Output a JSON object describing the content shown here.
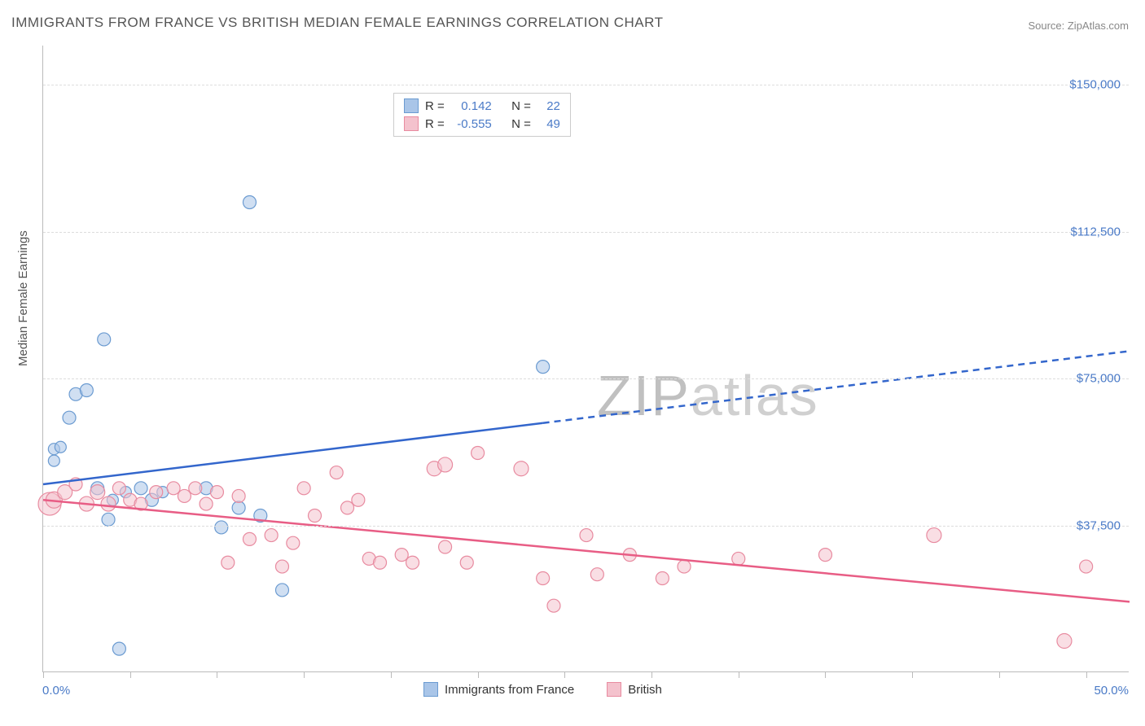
{
  "title": "IMMIGRANTS FROM FRANCE VS BRITISH MEDIAN FEMALE EARNINGS CORRELATION CHART",
  "source_label": "Source: ",
  "source_name": "ZipAtlas.com",
  "ylabel": "Median Female Earnings",
  "watermark_zip": "ZIP",
  "watermark_atlas": "atlas",
  "chart": {
    "type": "scatter",
    "background_color": "#ffffff",
    "grid_color": "#dddddd",
    "axis_color": "#bbbbbb",
    "tick_color": "#4a7ac7",
    "xlim": [
      0,
      50
    ],
    "ylim": [
      0,
      160000
    ],
    "ytick_values": [
      37500,
      75000,
      112500,
      150000
    ],
    "ytick_labels": [
      "$37,500",
      "$75,000",
      "$112,500",
      "$150,000"
    ],
    "xtick_positions_pct": [
      0,
      8,
      16,
      24,
      32,
      40,
      48,
      56,
      64,
      72,
      80,
      88,
      96
    ],
    "xtick_left": "0.0%",
    "xtick_right": "50.0%",
    "stats": {
      "r_label": "R =",
      "n_label": "N =",
      "series1": {
        "r": "0.142",
        "n": "22"
      },
      "series2": {
        "r": "-0.555",
        "n": "49"
      }
    },
    "series": [
      {
        "name": "Immigrants from France",
        "fill_color": "#a9c5e8",
        "stroke_color": "#6b9bd1",
        "line_color": "#3366cc",
        "line_solid_end_x": 23,
        "trend": {
          "x1": 0,
          "y1": 48000,
          "x2": 50,
          "y2": 82000
        },
        "marker_radius": 8,
        "points": [
          {
            "x": 0.5,
            "y": 57000,
            "r": 7
          },
          {
            "x": 0.5,
            "y": 54000,
            "r": 7
          },
          {
            "x": 0.8,
            "y": 57500,
            "r": 7
          },
          {
            "x": 1.2,
            "y": 65000,
            "r": 8
          },
          {
            "x": 1.5,
            "y": 71000,
            "r": 8
          },
          {
            "x": 2.0,
            "y": 72000,
            "r": 8
          },
          {
            "x": 2.5,
            "y": 47000,
            "r": 8
          },
          {
            "x": 2.8,
            "y": 85000,
            "r": 8
          },
          {
            "x": 3.0,
            "y": 39000,
            "r": 8
          },
          {
            "x": 3.2,
            "y": 44000,
            "r": 7
          },
          {
            "x": 3.5,
            "y": 6000,
            "r": 8
          },
          {
            "x": 3.8,
            "y": 46000,
            "r": 7
          },
          {
            "x": 4.5,
            "y": 47000,
            "r": 8
          },
          {
            "x": 5.0,
            "y": 44000,
            "r": 8
          },
          {
            "x": 5.5,
            "y": 46000,
            "r": 7
          },
          {
            "x": 7.5,
            "y": 47000,
            "r": 8
          },
          {
            "x": 8.2,
            "y": 37000,
            "r": 8
          },
          {
            "x": 9.0,
            "y": 42000,
            "r": 8
          },
          {
            "x": 9.5,
            "y": 120000,
            "r": 8
          },
          {
            "x": 10.0,
            "y": 40000,
            "r": 8
          },
          {
            "x": 11.0,
            "y": 21000,
            "r": 8
          },
          {
            "x": 23.0,
            "y": 78000,
            "r": 8
          }
        ]
      },
      {
        "name": "British",
        "fill_color": "#f4c2cd",
        "stroke_color": "#e88ba0",
        "line_color": "#e85d85",
        "trend": {
          "x1": 0,
          "y1": 44000,
          "x2": 50,
          "y2": 18000
        },
        "marker_radius": 8,
        "points": [
          {
            "x": 0.3,
            "y": 43000,
            "r": 14
          },
          {
            "x": 0.5,
            "y": 44000,
            "r": 10
          },
          {
            "x": 1.0,
            "y": 46000,
            "r": 9
          },
          {
            "x": 1.5,
            "y": 48000,
            "r": 8
          },
          {
            "x": 2.0,
            "y": 43000,
            "r": 9
          },
          {
            "x": 2.5,
            "y": 46000,
            "r": 9
          },
          {
            "x": 3.0,
            "y": 43000,
            "r": 9
          },
          {
            "x": 3.5,
            "y": 47000,
            "r": 8
          },
          {
            "x": 4.0,
            "y": 44000,
            "r": 8
          },
          {
            "x": 4.5,
            "y": 43000,
            "r": 8
          },
          {
            "x": 5.2,
            "y": 46000,
            "r": 8
          },
          {
            "x": 6.0,
            "y": 47000,
            "r": 8
          },
          {
            "x": 6.5,
            "y": 45000,
            "r": 8
          },
          {
            "x": 7.0,
            "y": 47000,
            "r": 8
          },
          {
            "x": 7.5,
            "y": 43000,
            "r": 8
          },
          {
            "x": 8.0,
            "y": 46000,
            "r": 8
          },
          {
            "x": 8.5,
            "y": 28000,
            "r": 8
          },
          {
            "x": 9.0,
            "y": 45000,
            "r": 8
          },
          {
            "x": 9.5,
            "y": 34000,
            "r": 8
          },
          {
            "x": 10.5,
            "y": 35000,
            "r": 8
          },
          {
            "x": 11.0,
            "y": 27000,
            "r": 8
          },
          {
            "x": 11.5,
            "y": 33000,
            "r": 8
          },
          {
            "x": 12.0,
            "y": 47000,
            "r": 8
          },
          {
            "x": 12.5,
            "y": 40000,
            "r": 8
          },
          {
            "x": 13.5,
            "y": 51000,
            "r": 8
          },
          {
            "x": 14.0,
            "y": 42000,
            "r": 8
          },
          {
            "x": 14.5,
            "y": 44000,
            "r": 8
          },
          {
            "x": 15.0,
            "y": 29000,
            "r": 8
          },
          {
            "x": 15.5,
            "y": 28000,
            "r": 8
          },
          {
            "x": 16.5,
            "y": 30000,
            "r": 8
          },
          {
            "x": 17.0,
            "y": 28000,
            "r": 8
          },
          {
            "x": 18.0,
            "y": 52000,
            "r": 9
          },
          {
            "x": 18.5,
            "y": 53000,
            "r": 9
          },
          {
            "x": 18.5,
            "y": 32000,
            "r": 8
          },
          {
            "x": 19.5,
            "y": 28000,
            "r": 8
          },
          {
            "x": 20.0,
            "y": 56000,
            "r": 8
          },
          {
            "x": 22.0,
            "y": 52000,
            "r": 9
          },
          {
            "x": 23.0,
            "y": 24000,
            "r": 8
          },
          {
            "x": 23.5,
            "y": 17000,
            "r": 8
          },
          {
            "x": 25.0,
            "y": 35000,
            "r": 8
          },
          {
            "x": 25.5,
            "y": 25000,
            "r": 8
          },
          {
            "x": 27.0,
            "y": 30000,
            "r": 8
          },
          {
            "x": 28.5,
            "y": 24000,
            "r": 8
          },
          {
            "x": 29.5,
            "y": 27000,
            "r": 8
          },
          {
            "x": 32.0,
            "y": 29000,
            "r": 8
          },
          {
            "x": 36.0,
            "y": 30000,
            "r": 8
          },
          {
            "x": 41.0,
            "y": 35000,
            "r": 9
          },
          {
            "x": 47.0,
            "y": 8000,
            "r": 9
          },
          {
            "x": 48.0,
            "y": 27000,
            "r": 8
          }
        ]
      }
    ]
  },
  "legend": {
    "series1_label": "Immigrants from France",
    "series2_label": "British"
  }
}
